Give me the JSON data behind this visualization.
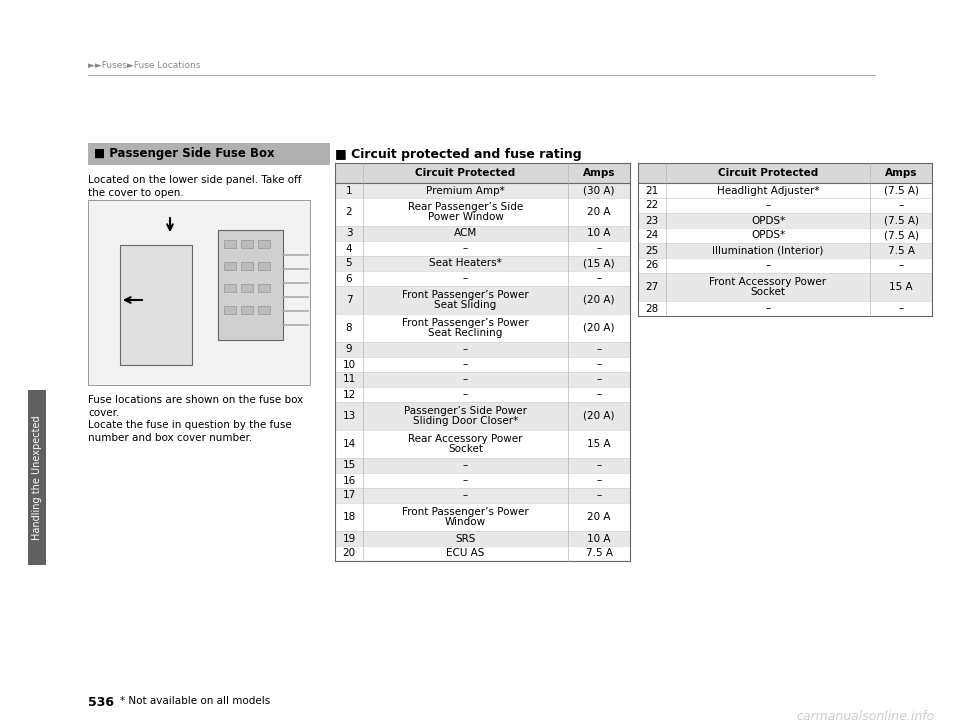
{
  "page_number": "536",
  "header_text": "►►Fuses►Fuse Locations",
  "watermark": "carmanualsonline.info",
  "side_label": "Handling the Unexpected",
  "footnote": "* Not available on all models",
  "section_title": "Passenger Side Fuse Box",
  "left_body_text_1": "Located on the lower side panel. Take off",
  "left_body_text_2": "the cover to open.",
  "left_body_text_3": "Fuse locations are shown on the fuse box",
  "left_body_text_4": "cover.",
  "left_body_text_5": "Locate the fuse in question by the fuse",
  "left_body_text_6": "number and box cover number.",
  "table1_title": "■ Circuit protected and fuse rating",
  "table1_headers": [
    "Circuit Protected",
    "Amps"
  ],
  "table1_rows": [
    [
      "1",
      "Premium Amp*",
      "(30 A)",
      true
    ],
    [
      "2",
      "Rear Passenger’s Side\nPower Window",
      "20 A",
      false
    ],
    [
      "3",
      "ACM",
      "10 A",
      true
    ],
    [
      "4",
      "–",
      "–",
      false
    ],
    [
      "5",
      "Seat Heaters*",
      "(15 A)",
      true
    ],
    [
      "6",
      "–",
      "–",
      false
    ],
    [
      "7",
      "Front Passenger’s Power\nSeat Sliding",
      "(20 A)",
      true
    ],
    [
      "8",
      "Front Passenger’s Power\nSeat Reclining",
      "(20 A)",
      false
    ],
    [
      "9",
      "–",
      "–",
      true
    ],
    [
      "10",
      "–",
      "–",
      false
    ],
    [
      "11",
      "–",
      "–",
      true
    ],
    [
      "12",
      "–",
      "–",
      false
    ],
    [
      "13",
      "Passenger’s Side Power\nSliding Door Closer*",
      "(20 A)",
      true
    ],
    [
      "14",
      "Rear Accessory Power\nSocket",
      "15 A",
      false
    ],
    [
      "15",
      "–",
      "–",
      true
    ],
    [
      "16",
      "–",
      "–",
      false
    ],
    [
      "17",
      "–",
      "–",
      true
    ],
    [
      "18",
      "Front Passenger’s Power\nWindow",
      "20 A",
      false
    ],
    [
      "19",
      "SRS",
      "10 A",
      true
    ],
    [
      "20",
      "ECU AS",
      "7.5 A",
      false
    ]
  ],
  "table2_headers": [
    "Circuit Protected",
    "Amps"
  ],
  "table2_rows": [
    [
      "21",
      "Headlight Adjuster*",
      "(7.5 A)",
      false
    ],
    [
      "22",
      "–",
      "–",
      false
    ],
    [
      "23",
      "OPDS*",
      "(7.5 A)",
      true
    ],
    [
      "24",
      "OPDS*",
      "(7.5 A)",
      false
    ],
    [
      "25",
      "Illumination (Interior)",
      "7.5 A",
      true
    ],
    [
      "26",
      "–",
      "–",
      false
    ],
    [
      "27",
      "Front Accessory Power\nSocket",
      "15 A",
      true
    ],
    [
      "28",
      "–",
      "–",
      false
    ]
  ],
  "bg_color": "#ffffff",
  "table_header_bg": "#d8d8d8",
  "shaded_row_bg": "#e8e8e8",
  "section_title_bg": "#b0b0b0",
  "side_tab_color": "#606060",
  "header_line_color": "#aaaaaa"
}
